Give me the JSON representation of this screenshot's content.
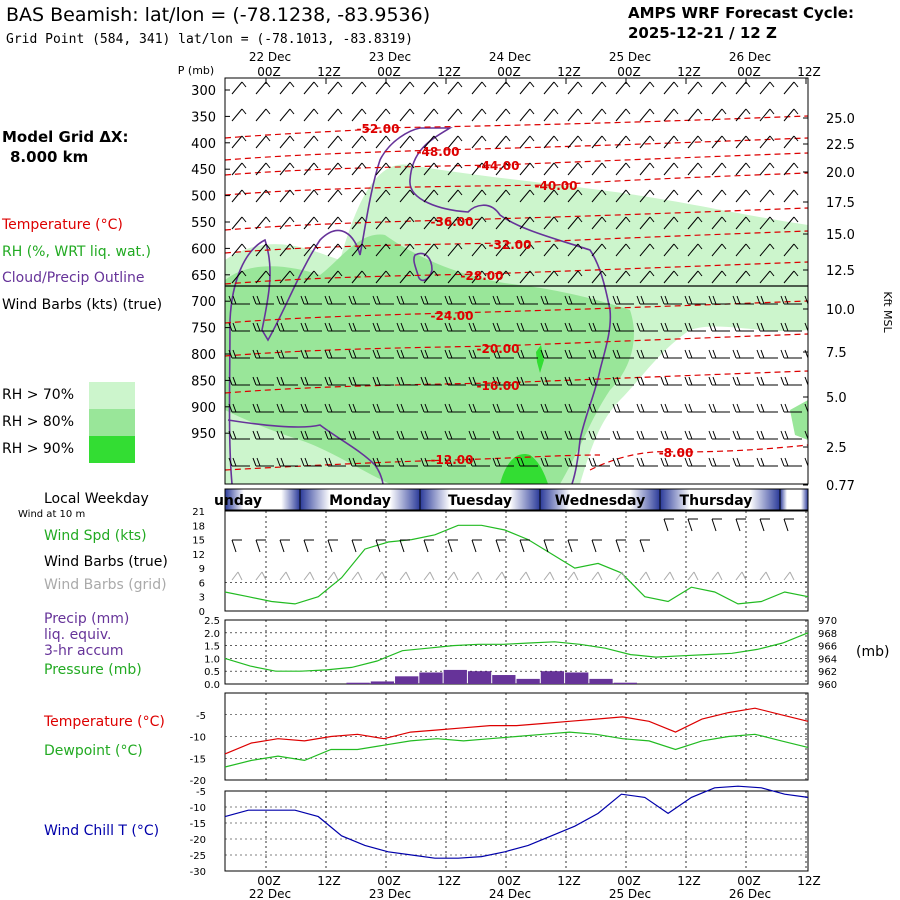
{
  "header": {
    "title": "BAS Beamish:  lat/lon = (-78.1238, -83.9536)",
    "subtitle": "Grid Point (584, 341) lat/lon = (-78.1013, -83.8319)",
    "cycle_line1": "AMPS WRF Forecast Cycle:",
    "cycle_line2": "2025-12-21 / 12  Z"
  },
  "left_panel": {
    "grid_label": "Model Grid ΔX:",
    "grid_value": "8.000 km",
    "legend_temperature": "Temperature (°C)",
    "legend_rh": "RH (%, WRT liq. wat.)",
    "legend_cloud": "Cloud/Precip Outline",
    "legend_wind": "Wind Barbs (kts) (true)",
    "rh_levels": [
      "RH > 70%",
      "RH > 80%",
      "RH > 90%"
    ],
    "local_weekday": "Local Weekday",
    "wind_at_10m": "Wind at 10 m",
    "wind_spd": "Wind Spd (kts)",
    "wind_barbs_true": "Wind Barbs (true)",
    "wind_barbs_grid": "Wind Barbs (grid)",
    "precip_1": "Precip (mm)",
    "precip_2": "liq. equiv.",
    "precip_3": "3-hr accum",
    "pressure": "Pressure (mb)",
    "temperature": "Temperature (°C)",
    "dewpoint": "Dewpoint (°C)",
    "wind_chill": "Wind Chill T (°C)"
  },
  "colors": {
    "rh70": "#ccf5cc",
    "rh80": "#99e699",
    "rh90": "#33dd33",
    "temp_red": "#dd0000",
    "cloud_purple": "#663399",
    "green_line": "#22bb22",
    "wind_chill_blue": "#0000aa",
    "day_bar_blue": "#2a3a99"
  },
  "chart_data": {
    "time_axis": {
      "top_dates": [
        "22 Dec",
        "23 Dec",
        "24 Dec",
        "25 Dec",
        "26 Dec"
      ],
      "hours": [
        "00Z",
        "12Z",
        "00Z",
        "12Z",
        "00Z",
        "12Z",
        "00Z",
        "12Z",
        "00Z",
        "12Z"
      ],
      "weekdays": [
        "unday",
        "Monday",
        "Tuesday",
        "Wednesday",
        "Thursday"
      ]
    },
    "cross_section": {
      "type": "heatmap",
      "y_label": "P (mb)",
      "pressure_levels": [
        300,
        350,
        400,
        450,
        500,
        550,
        600,
        650,
        700,
        750,
        800,
        850,
        900,
        950
      ],
      "right_axis_label": "Kft MSL",
      "right_axis_values": [
        "25.0",
        "22.5",
        "20.0",
        "17.5",
        "15.0",
        "12.5",
        "10.0",
        "7.5",
        "5.0",
        "2.5",
        "0.77"
      ],
      "temperature_contours": [
        "-52.00",
        "-48.00",
        "-44.00",
        "-40.00",
        "-36.00",
        "-32.00",
        "-28.00",
        "-24.00",
        "-20.00",
        "-16.00",
        "-12.00",
        "-8.00"
      ]
    },
    "wind_speed": {
      "type": "line",
      "y_ticks": [
        "21",
        "18",
        "15",
        "12",
        "9",
        "6",
        "3",
        "0"
      ],
      "ylim": [
        0,
        21
      ],
      "values": [
        4,
        3,
        2,
        1.5,
        3,
        7,
        13,
        14.5,
        15,
        16,
        18,
        18,
        17,
        15,
        12,
        9,
        10,
        8,
        3,
        2,
        5,
        4,
        1.5,
        2,
        4,
        3
      ]
    },
    "pressure": {
      "type": "line",
      "y_ticks_left": [
        "2.5",
        "2.0",
        "1.5",
        "1.0",
        "0.5",
        "0.0"
      ],
      "y_ticks_right": [
        "970",
        "968",
        "966",
        "964",
        "962",
        "960"
      ],
      "unit": "(mb)",
      "ylim": [
        960,
        970
      ],
      "values": [
        964,
        962.8,
        962,
        962,
        962.2,
        962.6,
        963.6,
        965.2,
        965.6,
        966,
        966.2,
        966.2,
        966.4,
        966.6,
        966.2,
        965.6,
        964.6,
        964.2,
        964.4,
        964.6,
        964.8,
        965.4,
        966.4,
        968
      ],
      "precip": [
        0,
        0,
        0,
        0,
        0,
        0.05,
        0.1,
        0.3,
        0.45,
        0.55,
        0.5,
        0.35,
        0.2,
        0.5,
        0.45,
        0.2,
        0.05,
        0,
        0,
        0,
        0,
        0,
        0,
        0
      ]
    },
    "temperature": {
      "type": "line",
      "y_ticks": [
        "-5",
        "-10",
        "-15",
        "-20"
      ],
      "ylim": [
        -20,
        0
      ],
      "temperature": [
        -14,
        -11.5,
        -10.5,
        -11,
        -10,
        -9.5,
        -10.5,
        -9,
        -8.5,
        -8,
        -7.5,
        -7.5,
        -7,
        -6.5,
        -6,
        -5.5,
        -6.5,
        -9,
        -6,
        -4.5,
        -3.5,
        -5,
        -6.5
      ],
      "dewpoint": [
        -17,
        -15.5,
        -14.5,
        -15.5,
        -13,
        -13,
        -12,
        -11,
        -10.5,
        -11,
        -10.5,
        -10,
        -9.5,
        -9,
        -9.5,
        -10.5,
        -11,
        -13,
        -11,
        -10,
        -9.5,
        -11,
        -12.5
      ]
    },
    "wind_chill": {
      "type": "line",
      "y_ticks": [
        "-5",
        "-10",
        "-15",
        "-20",
        "-25",
        "-30"
      ],
      "ylim": [
        -30,
        -5
      ],
      "values": [
        -13,
        -11,
        -11,
        -11,
        -13,
        -19,
        -22,
        -24,
        -25,
        -26,
        -26,
        -25.5,
        -24,
        -22,
        -19,
        -16,
        -12,
        -6,
        -7,
        -12,
        -7,
        -4,
        -3.5,
        -4,
        -6,
        -7
      ]
    }
  }
}
